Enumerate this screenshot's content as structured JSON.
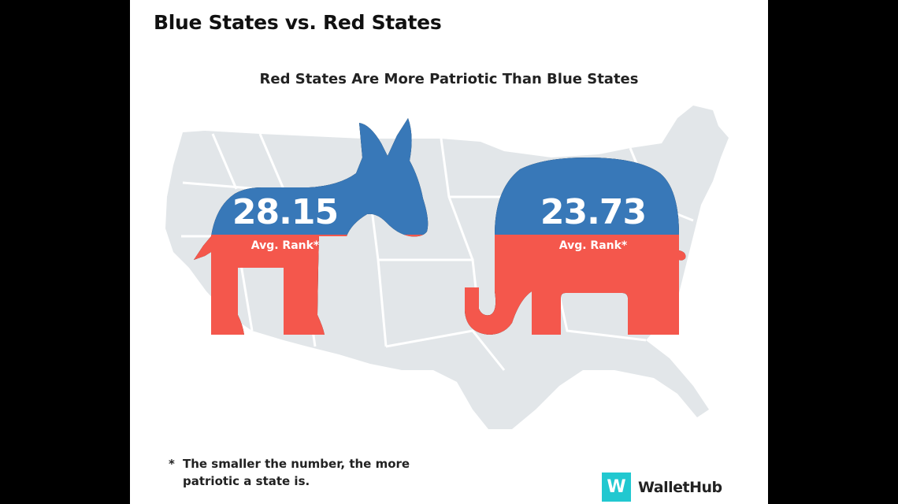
{
  "title": "Blue States vs. Red States",
  "subtitle": "Red States Are More Patriotic Than Blue States",
  "democrat": {
    "value": "28.15",
    "label": "Avg. Rank*",
    "top_color": "#3878b8",
    "bottom_color": "#f4574c"
  },
  "republican": {
    "value": "23.73",
    "label": "Avg. Rank*",
    "top_color": "#3878b8",
    "bottom_color": "#f4574c"
  },
  "footnote": {
    "marker": "*",
    "text": "The smaller the number, the more patriotic a state is."
  },
  "logo": {
    "mark": "W",
    "name": "WalletHub",
    "color": "#21c8d0"
  },
  "map_color": "#e2e6e9"
}
